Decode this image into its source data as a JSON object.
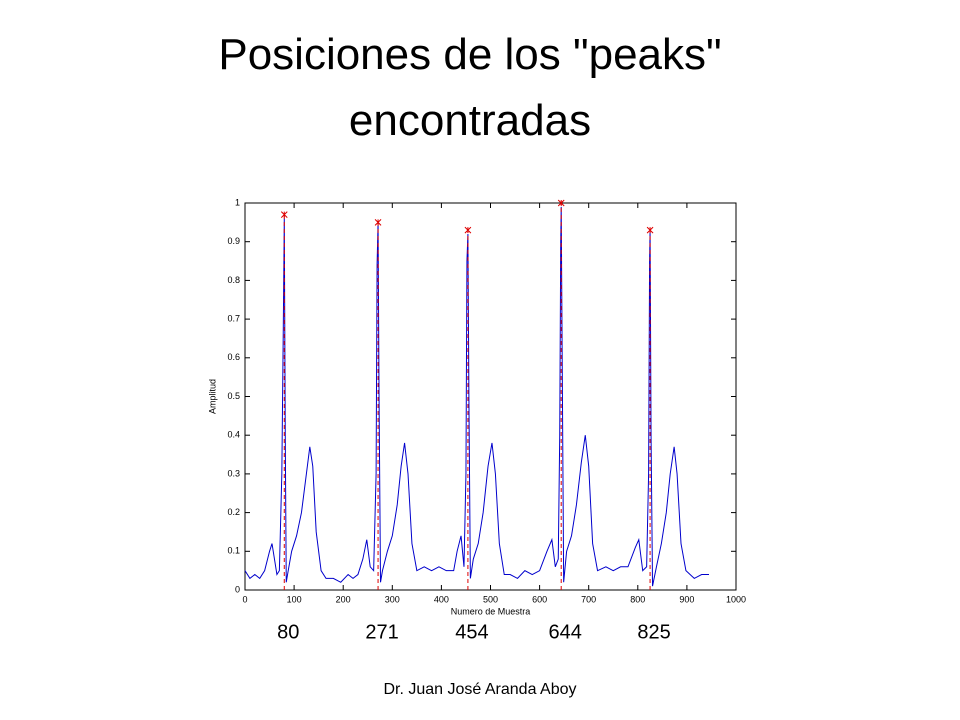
{
  "chart_data": {
    "type": "line",
    "title": "Posiciones de los \"peaks\" encontradas",
    "xlabel": "Numero de Muestra",
    "ylabel": "Amplitud",
    "xlim": [
      0,
      1000
    ],
    "ylim": [
      0,
      1
    ],
    "xticks": [
      0,
      100,
      200,
      300,
      400,
      500,
      600,
      700,
      800,
      900,
      1000
    ],
    "yticks": [
      0,
      0.1,
      0.2,
      0.3,
      0.4,
      0.5,
      0.6,
      0.7,
      0.8,
      0.9,
      1
    ],
    "series": [
      {
        "color": "#0000cc",
        "x": [
          0,
          10,
          20,
          30,
          40,
          50,
          55,
          60,
          65,
          70,
          75,
          78,
          80,
          82,
          84,
          88,
          95,
          105,
          115,
          125,
          132,
          138,
          145,
          155,
          165,
          180,
          195,
          210,
          220,
          230,
          240,
          248,
          255,
          262,
          267,
          269,
          271,
          273,
          276,
          280,
          290,
          300,
          310,
          318,
          325,
          332,
          340,
          350,
          365,
          380,
          395,
          410,
          425,
          432,
          440,
          446,
          450,
          452,
          454,
          456,
          459,
          465,
          475,
          485,
          495,
          503,
          510,
          518,
          528,
          540,
          555,
          570,
          585,
          600,
          615,
          625,
          632,
          638,
          641,
          643,
          644,
          646,
          649,
          655,
          665,
          675,
          685,
          693,
          700,
          708,
          718,
          735,
          750,
          765,
          780,
          795,
          802,
          810,
          818,
          822,
          824,
          825,
          827,
          830,
          838,
          848,
          858,
          866,
          874,
          880,
          888,
          898,
          915,
          930,
          945
        ],
        "values": [
          0.05,
          0.03,
          0.04,
          0.03,
          0.05,
          0.1,
          0.12,
          0.08,
          0.04,
          0.05,
          0.3,
          0.68,
          0.96,
          0.4,
          0.02,
          0.05,
          0.1,
          0.14,
          0.2,
          0.3,
          0.37,
          0.32,
          0.15,
          0.05,
          0.03,
          0.03,
          0.02,
          0.04,
          0.03,
          0.04,
          0.08,
          0.13,
          0.06,
          0.05,
          0.3,
          0.84,
          0.95,
          0.5,
          0.02,
          0.05,
          0.1,
          0.14,
          0.22,
          0.32,
          0.38,
          0.3,
          0.12,
          0.05,
          0.06,
          0.05,
          0.06,
          0.05,
          0.05,
          0.1,
          0.14,
          0.06,
          0.3,
          0.85,
          0.92,
          0.5,
          0.03,
          0.08,
          0.12,
          0.2,
          0.32,
          0.38,
          0.3,
          0.12,
          0.04,
          0.04,
          0.03,
          0.05,
          0.04,
          0.05,
          0.1,
          0.13,
          0.06,
          0.08,
          0.4,
          0.9,
          0.99,
          0.6,
          0.02,
          0.1,
          0.14,
          0.22,
          0.33,
          0.4,
          0.32,
          0.12,
          0.05,
          0.06,
          0.05,
          0.06,
          0.06,
          0.11,
          0.13,
          0.05,
          0.06,
          0.3,
          0.85,
          0.93,
          0.4,
          0.01,
          0.06,
          0.12,
          0.2,
          0.3,
          0.37,
          0.3,
          0.12,
          0.05,
          0.03,
          0.04,
          0.04
        ]
      }
    ],
    "peaks": {
      "color": "#dd0000",
      "x": [
        80,
        271,
        454,
        644,
        825
      ],
      "values": [
        0.97,
        0.95,
        0.93,
        1.0,
        0.93
      ]
    }
  },
  "footer": "Dr. Juan José Aranda Aboy"
}
